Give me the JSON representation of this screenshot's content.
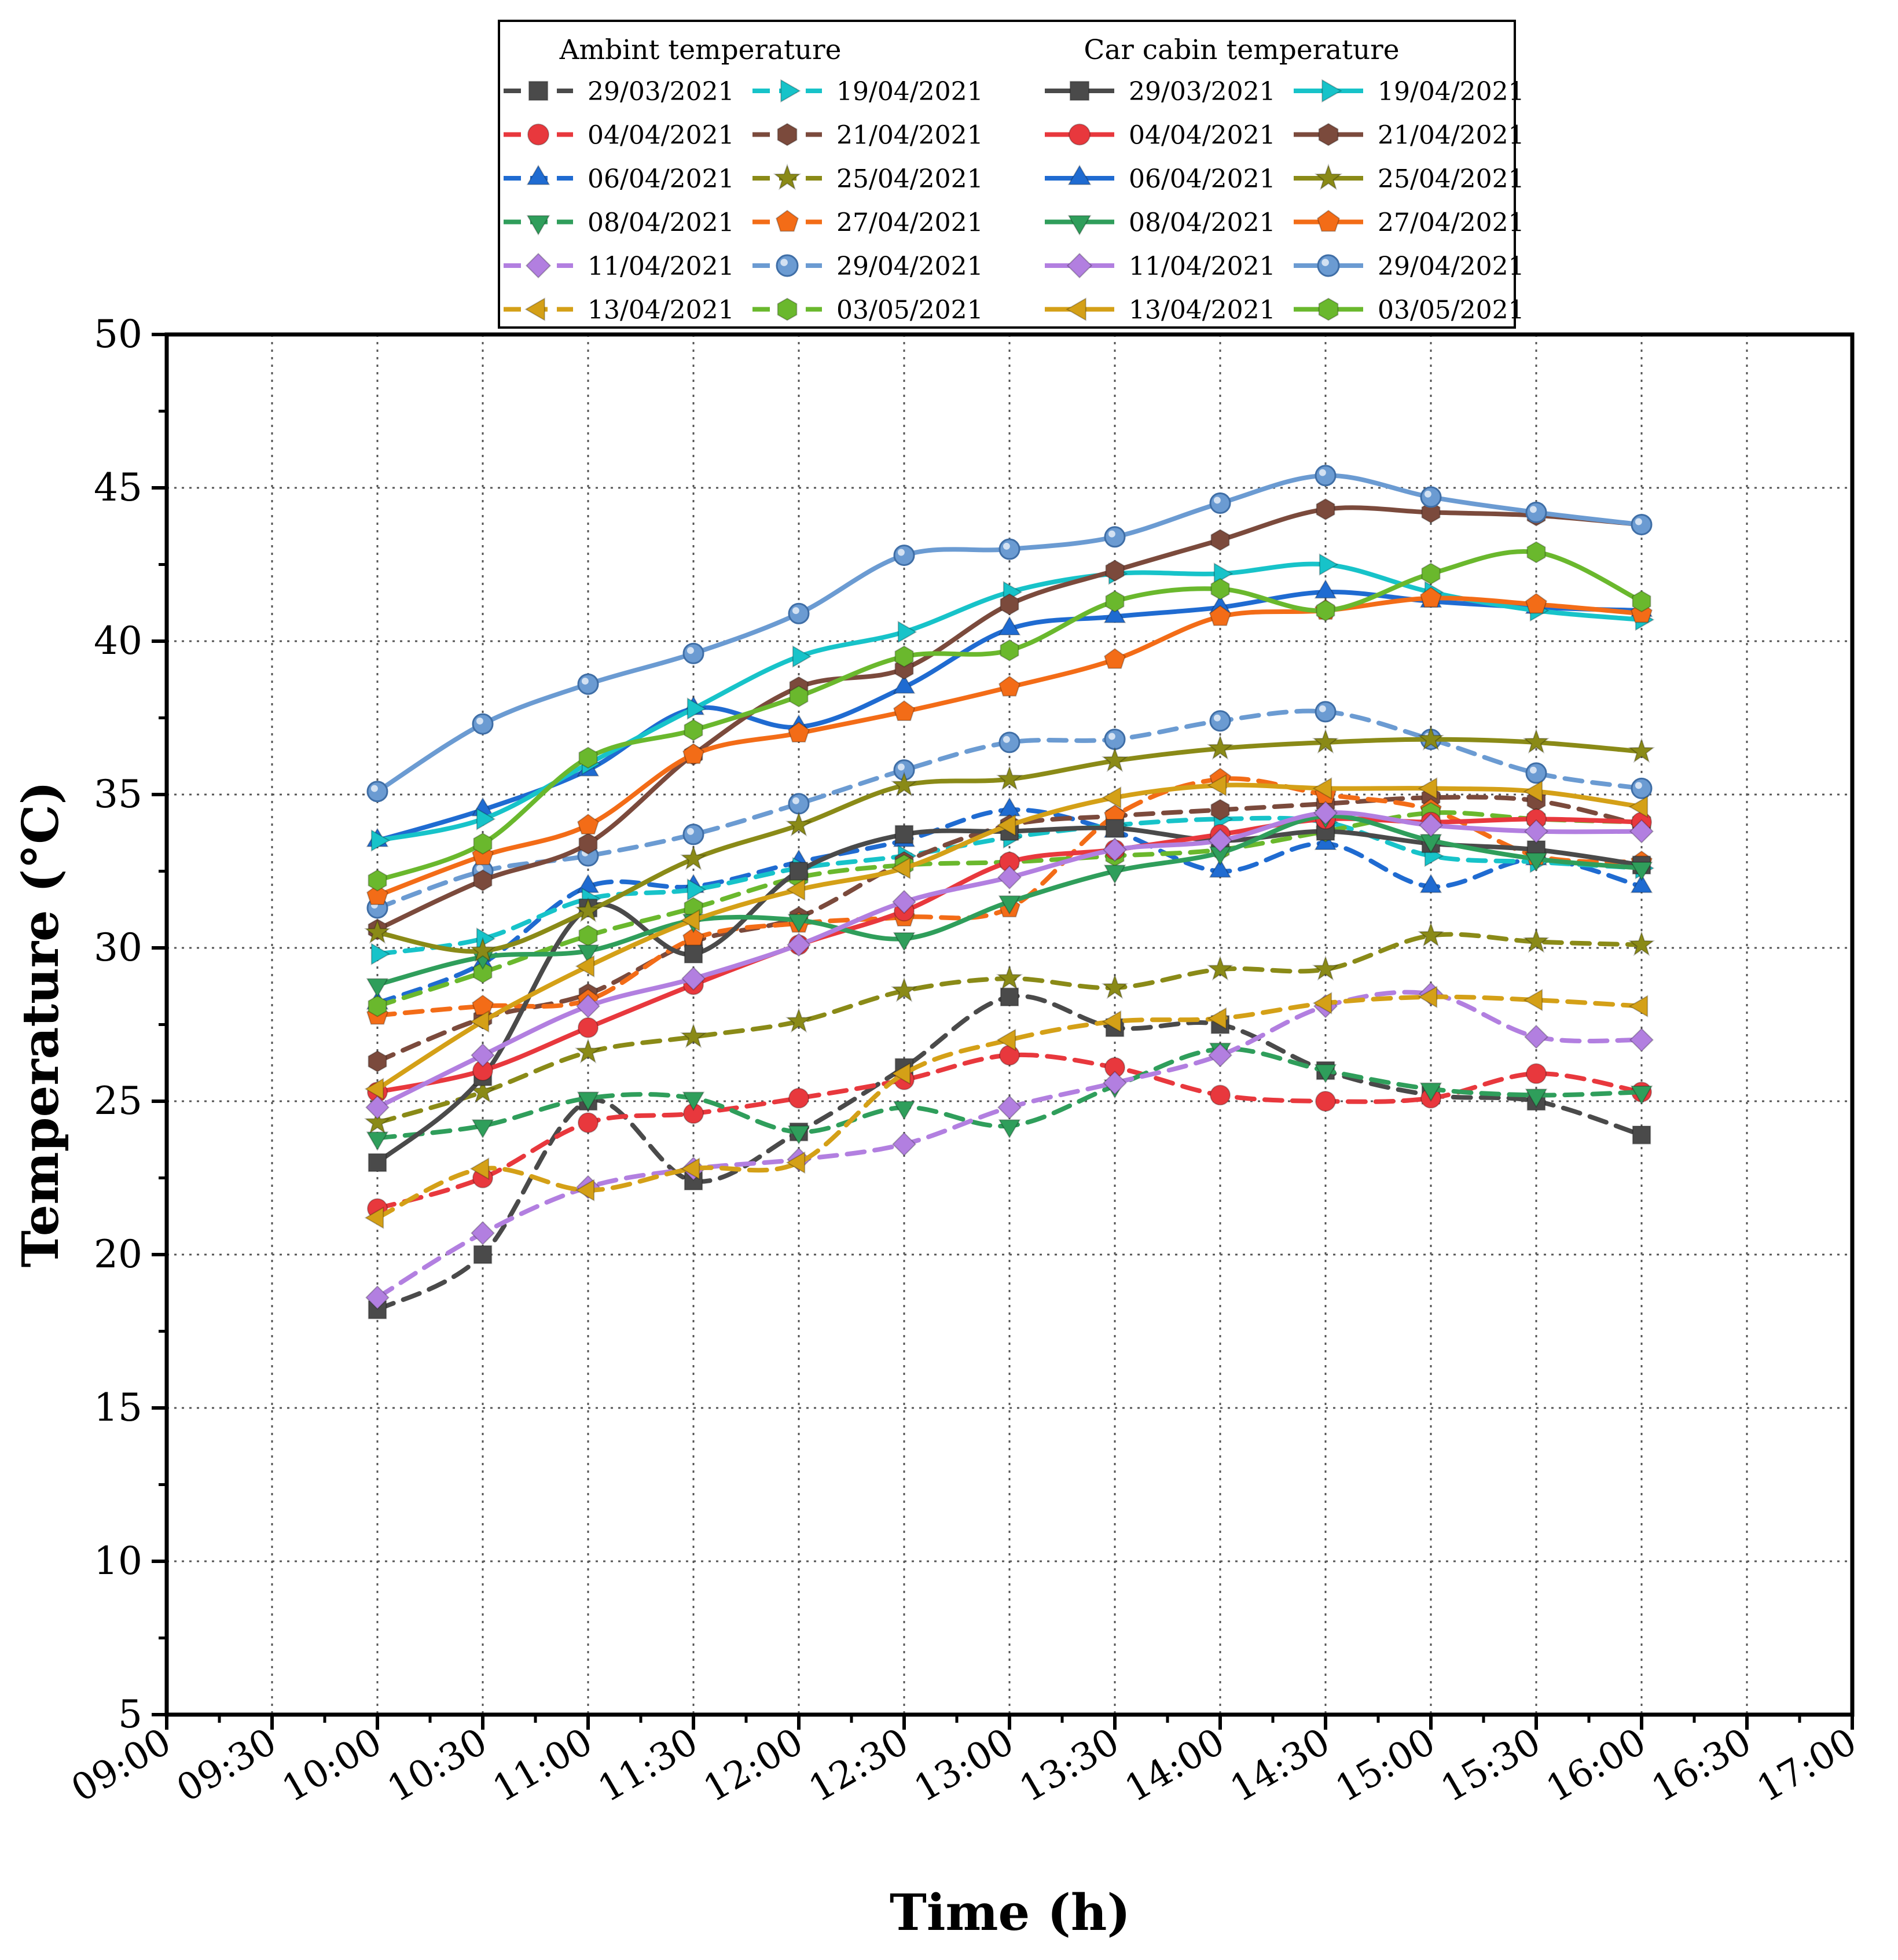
{
  "chart_data": {
    "type": "line",
    "xlabel": "Time (h)",
    "ylabel": "Temperature (°C)",
    "xlim": [
      "09:00",
      "17:00"
    ],
    "ylim": [
      5,
      50
    ],
    "x_ticks": [
      "09:00",
      "09:30",
      "10:00",
      "10:30",
      "11:00",
      "11:30",
      "12:00",
      "12:30",
      "13:00",
      "13:30",
      "14:00",
      "14:30",
      "15:00",
      "15:30",
      "16:00",
      "16:30",
      "17:00"
    ],
    "y_ticks": [
      "5",
      "10",
      "15",
      "20",
      "25",
      "30",
      "35",
      "40",
      "45",
      "50"
    ],
    "grid": true,
    "legend_placement": "top, above plot",
    "legend_groups": [
      {
        "title": "Ambint temperature",
        "line_style": "dashed"
      },
      {
        "title": "Car cabin temperature",
        "line_style": "solid"
      }
    ],
    "x": [
      "10:00",
      "10:30",
      "11:00",
      "11:30",
      "12:00",
      "12:30",
      "13:00",
      "13:30",
      "14:00",
      "14:30",
      "15:00",
      "15:30",
      "16:00"
    ],
    "series": [
      {
        "name": "29/03/2021",
        "group": "ambient",
        "color": "#4a4a4a",
        "marker": "square",
        "values": [
          18.2,
          20.0,
          25.0,
          22.4,
          24.0,
          26.1,
          28.4,
          27.4,
          27.5,
          26.0,
          25.2,
          25.0,
          23.9
        ]
      },
      {
        "name": "04/04/2021",
        "group": "ambient",
        "color": "#e8383d",
        "marker": "circle",
        "values": [
          21.5,
          22.5,
          24.3,
          24.6,
          25.1,
          25.7,
          26.5,
          26.1,
          25.2,
          25.0,
          25.1,
          25.9,
          25.3
        ]
      },
      {
        "name": "06/04/2021",
        "group": "ambient",
        "color": "#1f6bd1",
        "marker": "triangle-up",
        "values": [
          28.2,
          29.5,
          32.0,
          32.0,
          32.8,
          33.5,
          34.5,
          33.8,
          32.5,
          33.4,
          32.0,
          32.9,
          32.0
        ]
      },
      {
        "name": "08/04/2021",
        "group": "ambient",
        "color": "#2f9e5b",
        "marker": "triangle-down",
        "values": [
          23.8,
          24.2,
          25.1,
          25.1,
          24.0,
          24.8,
          24.2,
          25.5,
          26.7,
          26.0,
          25.4,
          25.2,
          25.3
        ]
      },
      {
        "name": "11/04/2021",
        "group": "ambient",
        "color": "#b27fe0",
        "marker": "diamond",
        "values": [
          18.6,
          20.7,
          22.2,
          22.8,
          23.1,
          23.6,
          24.8,
          25.6,
          26.5,
          28.1,
          28.5,
          27.1,
          27.0
        ]
      },
      {
        "name": "13/04/2021",
        "group": "ambient",
        "color": "#d4a017",
        "marker": "triangle-left",
        "values": [
          21.2,
          22.8,
          22.1,
          22.8,
          23.0,
          25.9,
          27.0,
          27.6,
          27.7,
          28.2,
          28.4,
          28.3,
          28.1
        ]
      },
      {
        "name": "19/04/2021",
        "group": "ambient",
        "color": "#17c3c9",
        "marker": "triangle-right",
        "values": [
          29.8,
          30.3,
          31.6,
          31.9,
          32.6,
          33.0,
          33.6,
          34.0,
          34.2,
          34.1,
          33.0,
          32.8,
          32.6
        ]
      },
      {
        "name": "21/04/2021",
        "group": "ambient",
        "color": "#7b4a3c",
        "marker": "hexagon",
        "values": [
          26.3,
          27.7,
          28.5,
          30.2,
          31.0,
          32.8,
          34.0,
          34.3,
          34.5,
          34.7,
          34.9,
          34.8,
          34.0
        ]
      },
      {
        "name": "25/04/2021",
        "group": "ambient",
        "color": "#8a8a17",
        "marker": "star",
        "values": [
          24.3,
          25.3,
          26.6,
          27.1,
          27.6,
          28.6,
          29.0,
          28.7,
          29.3,
          29.3,
          30.4,
          30.2,
          30.1
        ]
      },
      {
        "name": "27/04/2021",
        "group": "ambient",
        "color": "#f36c17",
        "marker": "pentagon",
        "values": [
          27.8,
          28.1,
          28.3,
          30.3,
          30.8,
          31.0,
          31.3,
          34.3,
          35.5,
          35.0,
          34.5,
          33.0,
          32.8
        ]
      },
      {
        "name": "29/04/2021",
        "group": "ambient",
        "color": "#6b9bd2",
        "marker": "sphere",
        "values": [
          31.3,
          32.5,
          33.0,
          33.7,
          34.7,
          35.8,
          36.7,
          36.8,
          37.4,
          37.7,
          36.8,
          35.7,
          35.2
        ]
      },
      {
        "name": "03/05/2021",
        "group": "ambient",
        "color": "#6ab82d",
        "marker": "hexagon",
        "values": [
          28.1,
          29.2,
          30.4,
          31.3,
          32.3,
          32.7,
          32.8,
          33.0,
          33.2,
          33.8,
          34.4,
          34.2,
          34.1
        ]
      },
      {
        "name": "29/03/2021",
        "group": "cabin",
        "color": "#4a4a4a",
        "marker": "square",
        "values": [
          23.0,
          25.8,
          31.3,
          29.8,
          32.5,
          33.7,
          33.8,
          33.9,
          33.5,
          33.8,
          33.4,
          33.2,
          32.7
        ]
      },
      {
        "name": "04/04/2021",
        "group": "cabin",
        "color": "#e8383d",
        "marker": "circle",
        "values": [
          25.3,
          26.0,
          27.4,
          28.8,
          30.1,
          31.2,
          32.8,
          33.2,
          33.7,
          34.2,
          34.1,
          34.2,
          34.1
        ]
      },
      {
        "name": "06/04/2021",
        "group": "cabin",
        "color": "#1f6bd1",
        "marker": "triangle-up",
        "values": [
          33.5,
          34.5,
          35.8,
          37.8,
          37.2,
          38.5,
          40.4,
          40.8,
          41.1,
          41.6,
          41.3,
          41.1,
          41.0
        ]
      },
      {
        "name": "08/04/2021",
        "group": "cabin",
        "color": "#2f9e5b",
        "marker": "triangle-down",
        "values": [
          28.8,
          29.7,
          29.9,
          30.9,
          30.9,
          30.3,
          31.5,
          32.5,
          33.1,
          34.3,
          33.5,
          32.9,
          32.6
        ]
      },
      {
        "name": "11/04/2021",
        "group": "cabin",
        "color": "#b27fe0",
        "marker": "diamond",
        "values": [
          24.8,
          26.5,
          28.1,
          29.0,
          30.1,
          31.5,
          32.3,
          33.2,
          33.5,
          34.4,
          34.0,
          33.8,
          33.8
        ]
      },
      {
        "name": "13/04/2021",
        "group": "cabin",
        "color": "#d4a017",
        "marker": "triangle-left",
        "values": [
          25.4,
          27.6,
          29.4,
          30.9,
          31.9,
          32.6,
          34.0,
          34.9,
          35.3,
          35.2,
          35.2,
          35.1,
          34.6
        ]
      },
      {
        "name": "19/04/2021",
        "group": "cabin",
        "color": "#17c3c9",
        "marker": "triangle-right",
        "values": [
          33.5,
          34.2,
          36.0,
          37.8,
          39.5,
          40.3,
          41.6,
          42.2,
          42.2,
          42.5,
          41.6,
          41.0,
          40.7
        ]
      },
      {
        "name": "21/04/2021",
        "group": "cabin",
        "color": "#7b4a3c",
        "marker": "hexagon",
        "values": [
          30.6,
          32.2,
          33.4,
          36.3,
          38.5,
          39.1,
          41.2,
          42.3,
          43.3,
          44.3,
          44.2,
          44.1,
          43.8
        ]
      },
      {
        "name": "25/04/2021",
        "group": "cabin",
        "color": "#8a8a17",
        "marker": "star",
        "values": [
          30.5,
          29.9,
          31.2,
          32.9,
          34.0,
          35.3,
          35.5,
          36.1,
          36.5,
          36.7,
          36.8,
          36.7,
          36.4
        ]
      },
      {
        "name": "27/04/2021",
        "group": "cabin",
        "color": "#f36c17",
        "marker": "pentagon",
        "values": [
          31.7,
          33.0,
          34.0,
          36.3,
          37.0,
          37.7,
          38.5,
          39.4,
          40.8,
          41.0,
          41.4,
          41.2,
          40.9
        ]
      },
      {
        "name": "29/04/2021",
        "group": "cabin",
        "color": "#6b9bd2",
        "marker": "sphere",
        "values": [
          35.1,
          37.3,
          38.6,
          39.6,
          40.9,
          42.8,
          43.0,
          43.4,
          44.5,
          45.4,
          44.7,
          44.2,
          43.8
        ]
      },
      {
        "name": "03/05/2021",
        "group": "cabin",
        "color": "#6ab82d",
        "marker": "hexagon",
        "values": [
          32.2,
          33.4,
          36.2,
          37.1,
          38.2,
          39.5,
          39.7,
          41.3,
          41.7,
          41.0,
          42.2,
          42.9,
          41.3
        ]
      }
    ]
  }
}
